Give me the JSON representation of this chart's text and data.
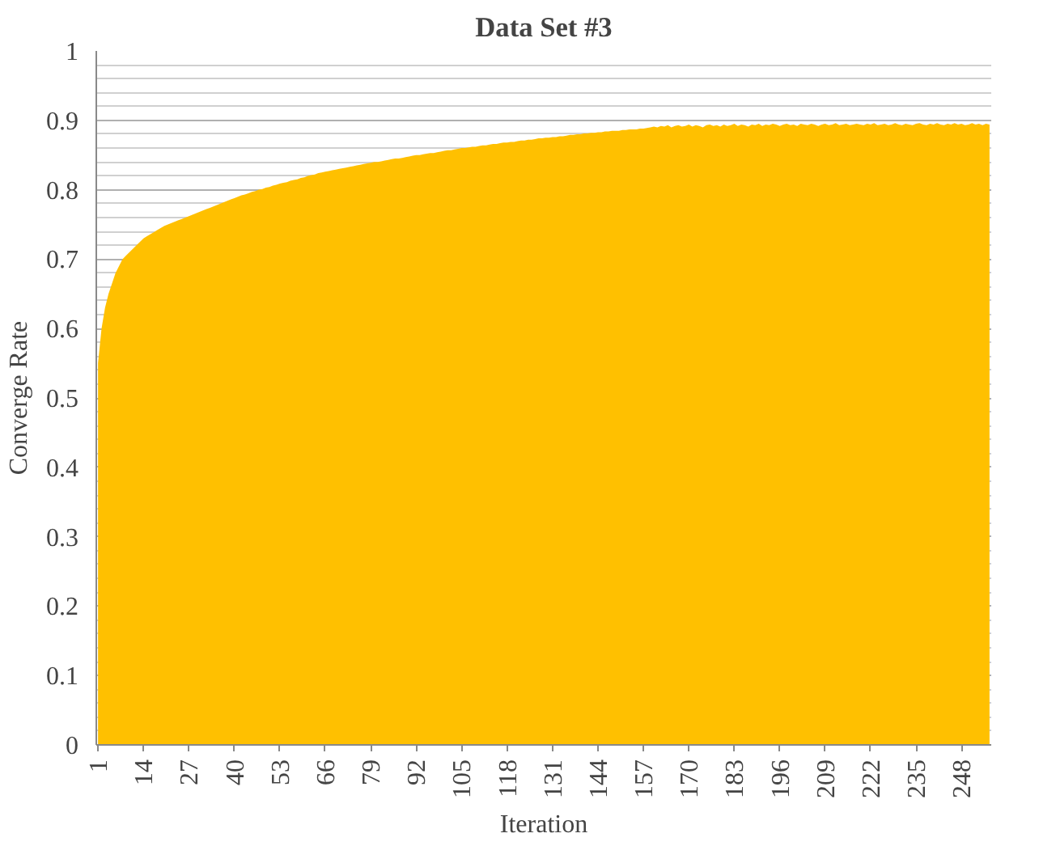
{
  "chart_data": {
    "type": "area",
    "title": "Data Set #3",
    "xlabel": "Iteration",
    "ylabel": "Converge Rate",
    "color": "#ffc000",
    "grid": "y",
    "ylim": [
      0,
      1
    ],
    "yticks": [
      0,
      {
        "value": 0.02,
        "label": null
      },
      {
        "value": 0.04,
        "label": null
      },
      {
        "value": 0.06,
        "label": null
      },
      {
        "value": 0.08,
        "label": null
      },
      0.1,
      {
        "value": 0.12,
        "label": null
      },
      {
        "value": 0.14,
        "label": null
      },
      {
        "value": 0.16,
        "label": null
      },
      {
        "value": 0.18,
        "label": null
      },
      0.2,
      {
        "value": 0.22,
        "label": null
      },
      {
        "value": 0.24,
        "label": null
      },
      {
        "value": 0.26,
        "label": null
      },
      {
        "value": 0.28,
        "label": null
      },
      0.3,
      {
        "value": 0.32,
        "label": null
      },
      {
        "value": 0.34,
        "label": null
      },
      {
        "value": 0.36,
        "label": null
      },
      {
        "value": 0.38,
        "label": null
      },
      0.4,
      {
        "value": 0.42,
        "label": null
      },
      {
        "value": 0.44,
        "label": null
      },
      {
        "value": 0.46,
        "label": null
      },
      {
        "value": 0.48,
        "label": null
      },
      0.5,
      {
        "value": 0.52,
        "label": null
      },
      {
        "value": 0.54,
        "label": null
      },
      {
        "value": 0.56,
        "label": null
      },
      {
        "value": 0.58,
        "label": null
      },
      0.6,
      {
        "value": 0.62,
        "label": null
      },
      {
        "value": 0.64,
        "label": null
      },
      {
        "value": 0.66,
        "label": null
      },
      {
        "value": 0.68,
        "label": null
      },
      0.7,
      {
        "value": 0.72,
        "label": null
      },
      {
        "value": 0.74,
        "label": null
      },
      {
        "value": 0.76,
        "label": null
      },
      {
        "value": 0.78,
        "label": null
      },
      0.8,
      {
        "value": 0.82,
        "label": null
      },
      {
        "value": 0.84,
        "label": null
      },
      {
        "value": 0.86,
        "label": null
      },
      {
        "value": 0.88,
        "label": null
      },
      0.9,
      {
        "value": 0.92,
        "label": null
      },
      {
        "value": 0.94,
        "label": null
      },
      {
        "value": 0.96,
        "label": null
      },
      {
        "value": 0.98,
        "label": null
      },
      1
    ],
    "categories": [
      "1",
      null,
      null,
      null,
      null,
      null,
      null,
      null,
      null,
      null,
      null,
      null,
      null,
      "14",
      null,
      null,
      null,
      null,
      null,
      null,
      null,
      null,
      null,
      null,
      null,
      null,
      "27",
      null,
      null,
      null,
      null,
      null,
      null,
      null,
      null,
      null,
      null,
      null,
      null,
      "40",
      null,
      null,
      null,
      null,
      null,
      null,
      null,
      null,
      null,
      null,
      null,
      null,
      "53",
      null,
      null,
      null,
      null,
      null,
      null,
      null,
      null,
      null,
      null,
      null,
      null,
      "66",
      null,
      null,
      null,
      null,
      null,
      null,
      null,
      null,
      null,
      null,
      null,
      null,
      "79",
      null,
      null,
      null,
      null,
      null,
      null,
      null,
      null,
      null,
      null,
      null,
      null,
      "92",
      null,
      null,
      null,
      null,
      null,
      null,
      null,
      null,
      null,
      null,
      null,
      null,
      "105",
      null,
      null,
      null,
      null,
      null,
      null,
      null,
      null,
      null,
      null,
      null,
      null,
      "118",
      null,
      null,
      null,
      null,
      null,
      null,
      null,
      null,
      null,
      null,
      null,
      null,
      "131",
      null,
      null,
      null,
      null,
      null,
      null,
      null,
      null,
      null,
      null,
      null,
      null,
      "144",
      null,
      null,
      null,
      null,
      null,
      null,
      null,
      null,
      null,
      null,
      null,
      null,
      "157",
      null,
      null,
      null,
      null,
      null,
      null,
      null,
      null,
      null,
      null,
      null,
      null,
      "170",
      null,
      null,
      null,
      null,
      null,
      null,
      null,
      null,
      null,
      null,
      null,
      null,
      "183",
      null,
      null,
      null,
      null,
      null,
      null,
      null,
      null,
      null,
      null,
      null,
      null,
      "196",
      null,
      null,
      null,
      null,
      null,
      null,
      null,
      null,
      null,
      null,
      null,
      null,
      "209",
      null,
      null,
      null,
      null,
      null,
      null,
      null,
      null,
      null,
      null,
      null,
      null,
      "222",
      null,
      null,
      null,
      null,
      null,
      null,
      null,
      null,
      null,
      null,
      null,
      null,
      "235",
      null,
      null,
      null,
      null,
      null,
      null,
      null,
      null,
      null,
      null,
      null,
      null,
      "248",
      null,
      null,
      null,
      null,
      null,
      null,
      null,
      null
    ],
    "values": [
      0.55,
      0.6,
      0.63,
      0.65,
      0.665,
      0.68,
      0.69,
      0.7,
      0.705,
      0.71,
      0.715,
      0.72,
      0.725,
      0.73,
      0.733,
      0.736,
      0.739,
      0.742,
      0.745,
      0.748,
      0.75,
      0.752,
      0.754,
      0.756,
      0.758,
      0.76,
      0.762,
      0.764,
      0.766,
      0.768,
      0.77,
      0.772,
      0.774,
      0.776,
      0.778,
      0.78,
      0.782,
      0.784,
      0.786,
      0.788,
      0.79,
      0.792,
      0.793,
      0.795,
      0.797,
      0.798,
      0.8,
      0.801,
      0.803,
      0.804,
      0.806,
      0.807,
      0.809,
      0.81,
      0.811,
      0.813,
      0.814,
      0.815,
      0.817,
      0.818,
      0.82,
      0.821,
      0.822,
      0.824,
      0.825,
      0.826,
      0.827,
      0.828,
      0.829,
      0.83,
      0.831,
      0.832,
      0.833,
      0.834,
      0.835,
      0.836,
      0.837,
      0.838,
      0.839,
      0.84,
      0.84,
      0.841,
      0.842,
      0.843,
      0.844,
      0.845,
      0.845,
      0.846,
      0.847,
      0.848,
      0.849,
      0.85,
      0.85,
      0.851,
      0.852,
      0.853,
      0.853,
      0.854,
      0.855,
      0.856,
      0.857,
      0.857,
      0.858,
      0.859,
      0.86,
      0.86,
      0.861,
      0.862,
      0.862,
      0.863,
      0.864,
      0.864,
      0.865,
      0.866,
      0.866,
      0.867,
      0.868,
      0.868,
      0.869,
      0.869,
      0.87,
      0.871,
      0.871,
      0.872,
      0.872,
      0.873,
      0.874,
      0.874,
      0.875,
      0.875,
      0.876,
      0.876,
      0.877,
      0.877,
      0.878,
      0.879,
      0.879,
      0.88,
      0.88,
      0.881,
      0.881,
      0.882,
      0.882,
      0.883,
      0.883,
      0.884,
      0.884,
      0.885,
      0.885,
      0.885,
      0.886,
      0.886,
      0.887,
      0.887,
      0.887,
      0.888,
      0.888,
      0.889,
      0.89,
      0.891,
      0.89,
      0.892,
      0.891,
      0.893,
      0.89,
      0.892,
      0.893,
      0.891,
      0.892,
      0.894,
      0.891,
      0.893,
      0.892,
      0.89,
      0.893,
      0.894,
      0.892,
      0.893,
      0.891,
      0.894,
      0.892,
      0.893,
      0.895,
      0.892,
      0.894,
      0.893,
      0.891,
      0.894,
      0.893,
      0.895,
      0.892,
      0.894,
      0.893,
      0.895,
      0.894,
      0.892,
      0.894,
      0.895,
      0.893,
      0.894,
      0.892,
      0.895,
      0.894,
      0.893,
      0.895,
      0.894,
      0.892,
      0.894,
      0.895,
      0.893,
      0.894,
      0.896,
      0.893,
      0.894,
      0.895,
      0.893,
      0.894,
      0.895,
      0.894,
      0.893,
      0.895,
      0.894,
      0.896,
      0.893,
      0.894,
      0.895,
      0.893,
      0.894,
      0.896,
      0.894,
      0.893,
      0.895,
      0.894,
      0.893,
      0.895,
      0.896,
      0.894,
      0.893,
      0.895,
      0.894,
      0.896,
      0.894,
      0.893,
      0.895,
      0.894,
      0.896,
      0.894,
      0.895,
      0.893,
      0.894,
      0.896,
      0.894,
      0.895,
      0.893,
      0.895,
      0.894
    ]
  }
}
